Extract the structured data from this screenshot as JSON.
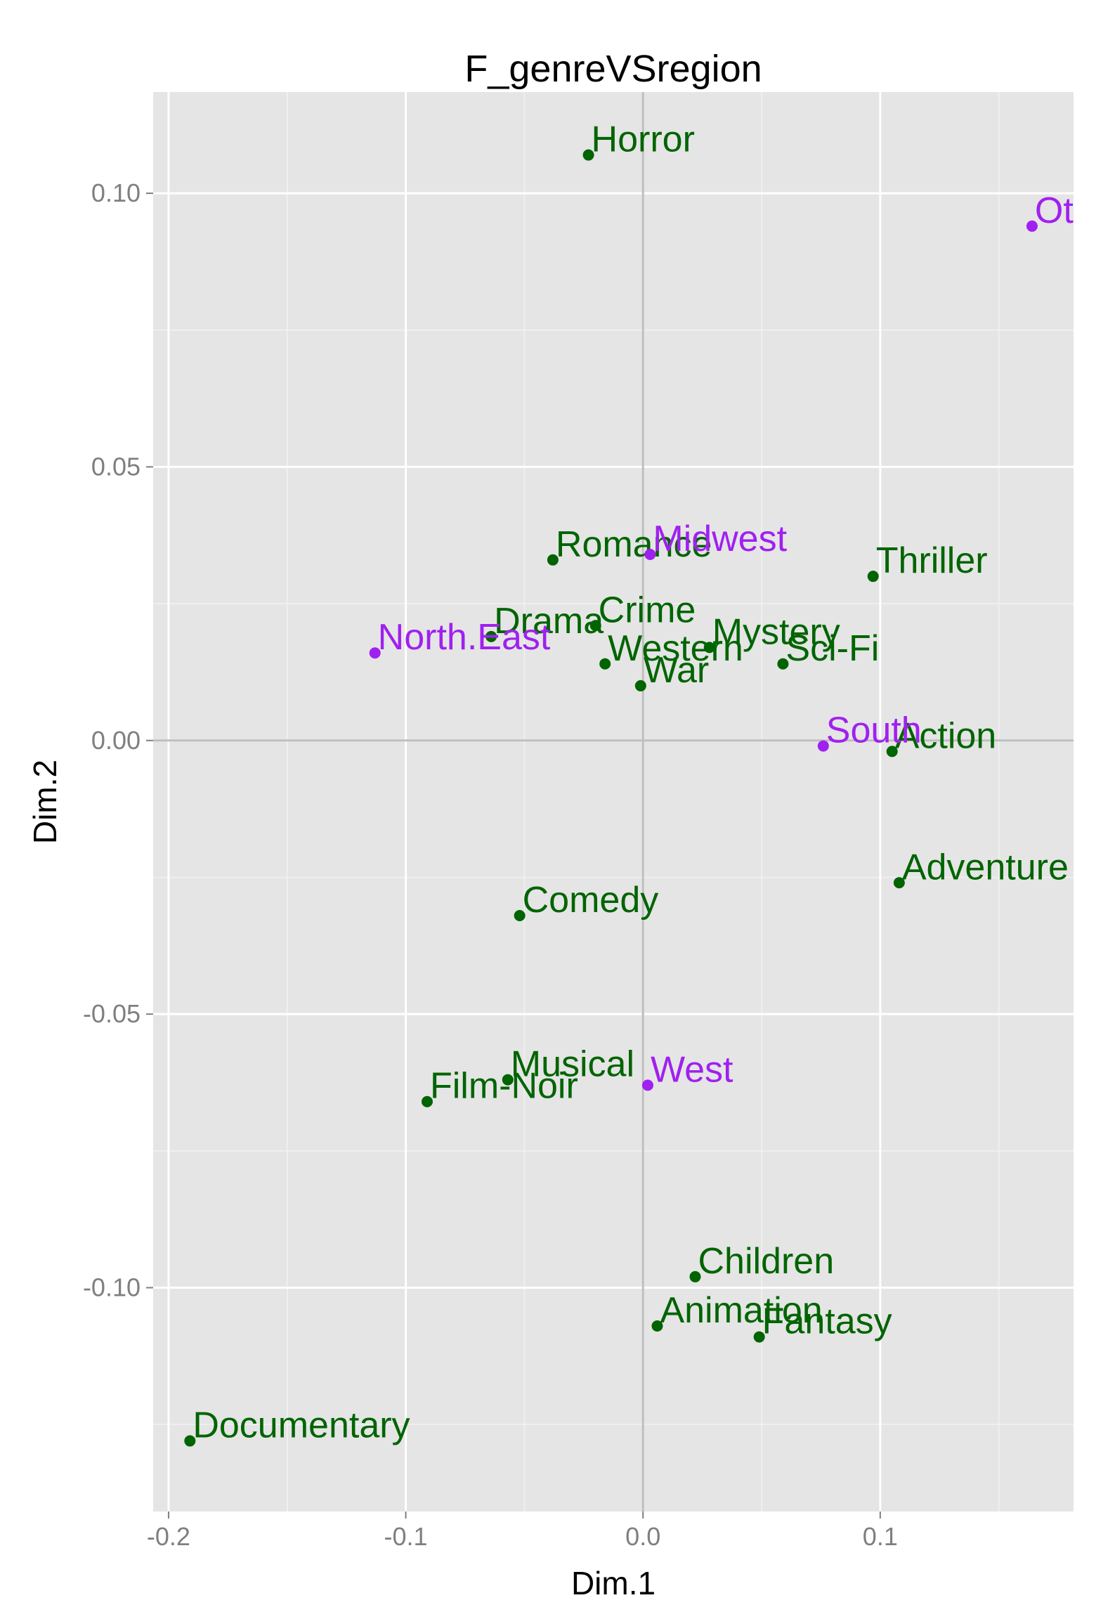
{
  "chart_data": {
    "type": "scatter",
    "title": "F_genreVSregion",
    "xlabel": "Dim.1",
    "ylabel": "Dim.2",
    "xlim": [
      -0.2065,
      0.1815
    ],
    "ylim": [
      -0.1409,
      0.1185
    ],
    "x_ticks": [
      -0.2,
      -0.1,
      0.0,
      0.1
    ],
    "x_tick_labels": [
      "-0.2",
      "-0.1",
      "0.0",
      "0.1"
    ],
    "y_ticks": [
      -0.1,
      -0.05,
      0.0,
      0.05,
      0.1
    ],
    "y_tick_labels": [
      "-0.10",
      "-0.05",
      "0.00",
      "0.05",
      "0.10"
    ],
    "grid": true,
    "reference_lines": {
      "x": 0,
      "y": 0
    },
    "series": [
      {
        "name": "genre",
        "color": "#006400",
        "points": [
          {
            "label": "Horror",
            "x": -0.023,
            "y": 0.107
          },
          {
            "label": "Romance",
            "x": -0.038,
            "y": 0.033
          },
          {
            "label": "Thriller",
            "x": 0.097,
            "y": 0.03
          },
          {
            "label": "Drama",
            "x": -0.064,
            "y": 0.019
          },
          {
            "label": "Crime",
            "x": -0.02,
            "y": 0.021
          },
          {
            "label": "Mystery",
            "x": 0.028,
            "y": 0.017
          },
          {
            "label": "Western",
            "x": -0.016,
            "y": 0.014
          },
          {
            "label": "Sci-Fi",
            "x": 0.059,
            "y": 0.014
          },
          {
            "label": "War",
            "x": -0.001,
            "y": 0.01
          },
          {
            "label": "Action",
            "x": 0.105,
            "y": -0.002
          },
          {
            "label": "Adventure",
            "x": 0.108,
            "y": -0.026
          },
          {
            "label": "Comedy",
            "x": -0.052,
            "y": -0.032
          },
          {
            "label": "Musical",
            "x": -0.057,
            "y": -0.062
          },
          {
            "label": "Film-Noir",
            "x": -0.091,
            "y": -0.066
          },
          {
            "label": "Children",
            "x": 0.022,
            "y": -0.098
          },
          {
            "label": "Animation",
            "x": 0.006,
            "y": -0.107
          },
          {
            "label": "Fantasy",
            "x": 0.049,
            "y": -0.109
          },
          {
            "label": "Documentary",
            "x": -0.191,
            "y": -0.128
          }
        ]
      },
      {
        "name": "region",
        "color": "#a020f0",
        "points": [
          {
            "label": "Other",
            "x": 0.164,
            "y": 0.094
          },
          {
            "label": "Midwest",
            "x": 0.003,
            "y": 0.034
          },
          {
            "label": "North.East",
            "x": -0.113,
            "y": 0.016
          },
          {
            "label": "South",
            "x": 0.076,
            "y": -0.001
          },
          {
            "label": "West",
            "x": 0.002,
            "y": -0.063
          }
        ]
      }
    ]
  }
}
